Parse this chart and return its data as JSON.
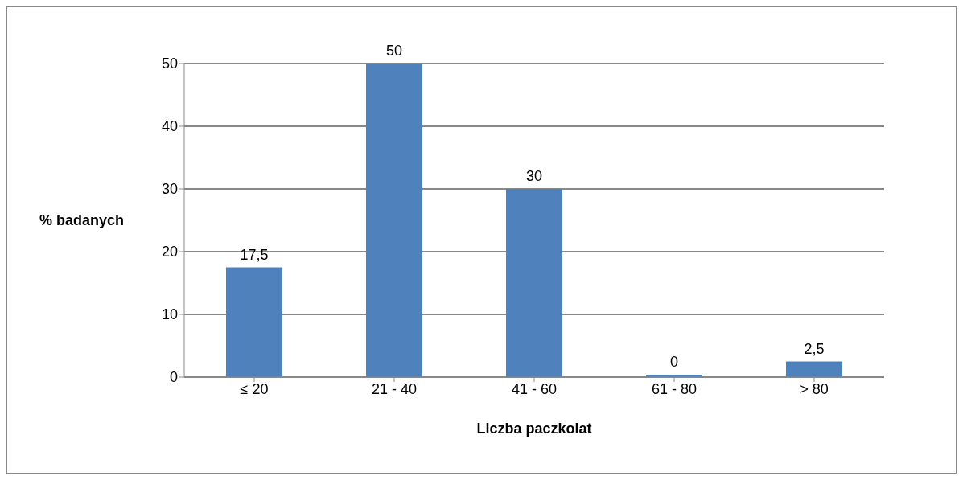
{
  "chart_data": {
    "type": "bar",
    "xlabel": "Liczba paczkolat",
    "ylabel": "% badanych",
    "categories": [
      "≤ 20",
      "21 - 40",
      "41 - 60",
      "61 - 80",
      "> 80"
    ],
    "values": [
      17.5,
      50,
      30,
      0,
      2.5
    ],
    "value_labels": [
      "17,5",
      "50",
      "30",
      "0",
      "2,5"
    ],
    "color": "#4f81bd",
    "ylim": [
      0,
      50
    ],
    "yticks": [
      0,
      10,
      20,
      30,
      40,
      50
    ],
    "grid": "y"
  }
}
